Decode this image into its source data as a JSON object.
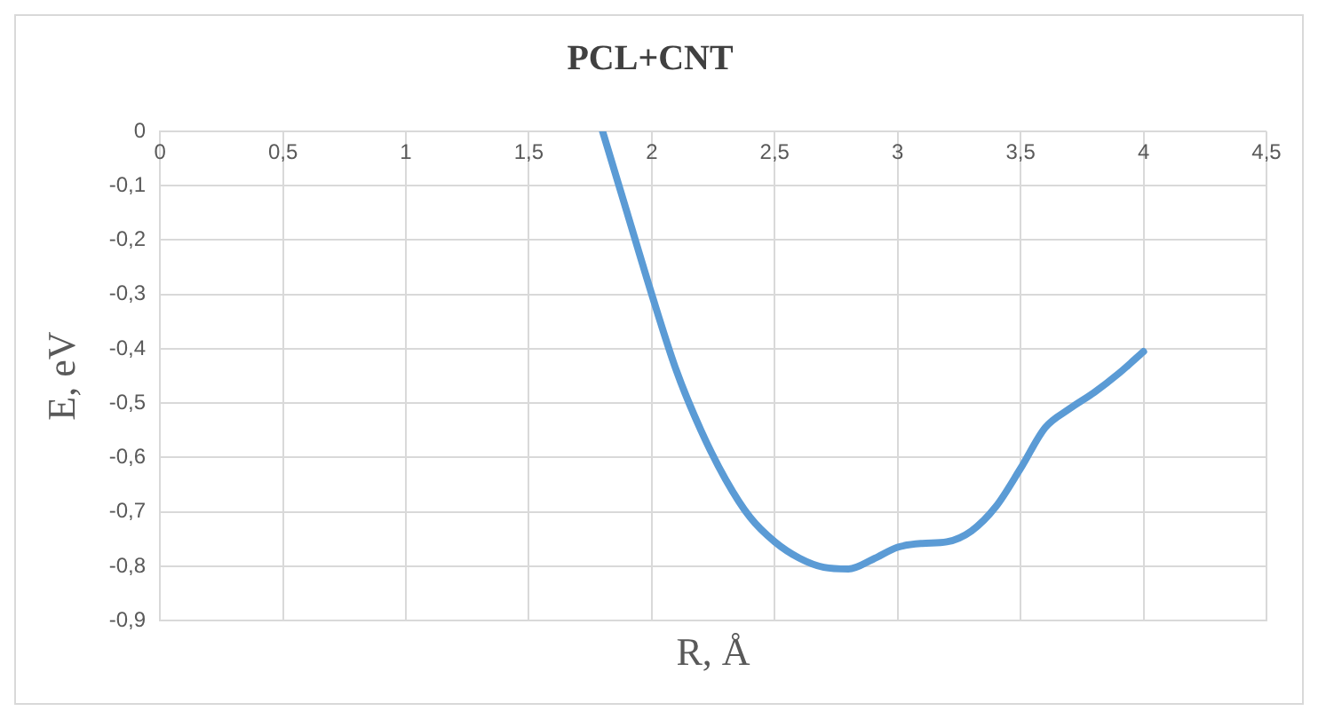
{
  "chart_data": {
    "type": "line",
    "title": "PCL+CNT",
    "xlabel": "R, Å",
    "ylabel": "E, eV",
    "x": [
      1.8,
      1.9,
      2,
      2.1,
      2.2,
      2.3,
      2.4,
      2.5,
      2.6,
      2.7,
      2.8,
      2.9,
      3,
      3.1,
      3.2,
      3.3,
      3.4,
      3.5,
      3.6,
      3.7,
      3.8,
      3.9,
      4
    ],
    "series": [
      {
        "color": "#5b9bd5",
        "values": [
          0,
          -0.15,
          -0.3,
          -0.44,
          -0.55,
          -0.64,
          -0.71,
          -0.755,
          -0.785,
          -0.802,
          -0.805,
          -0.787,
          -0.765,
          -0.758,
          -0.755,
          -0.735,
          -0.69,
          -0.62,
          -0.545,
          -0.51,
          -0.48,
          -0.445,
          -0.405
        ]
      }
    ],
    "xlim": [
      0,
      4.5
    ],
    "xticks": [
      0,
      {
        "value": 0.5,
        "label": "0,5"
      },
      1,
      {
        "value": 1.5,
        "label": "1,5"
      },
      2,
      {
        "value": 2.5,
        "label": "2,5"
      },
      3,
      {
        "value": 3.5,
        "label": "3,5"
      },
      4,
      {
        "value": 4.5,
        "label": "4,5"
      }
    ],
    "ylim": [
      -0.9,
      0
    ],
    "yticks": [
      {
        "value": -0.9,
        "label": "-0,9"
      },
      {
        "value": -0.8,
        "label": "-0,8"
      },
      {
        "value": -0.7,
        "label": "-0,7"
      },
      {
        "value": -0.6,
        "label": "-0,6"
      },
      {
        "value": -0.5,
        "label": "-0,5"
      },
      {
        "value": -0.4,
        "label": "-0,4"
      },
      {
        "value": -0.3,
        "label": "-0,3"
      },
      {
        "value": -0.2,
        "label": "-0,2"
      },
      {
        "value": -0.1,
        "label": "-0,1"
      },
      0
    ],
    "grid": true,
    "marker": "none",
    "line_style": "solid",
    "legend": false
  }
}
